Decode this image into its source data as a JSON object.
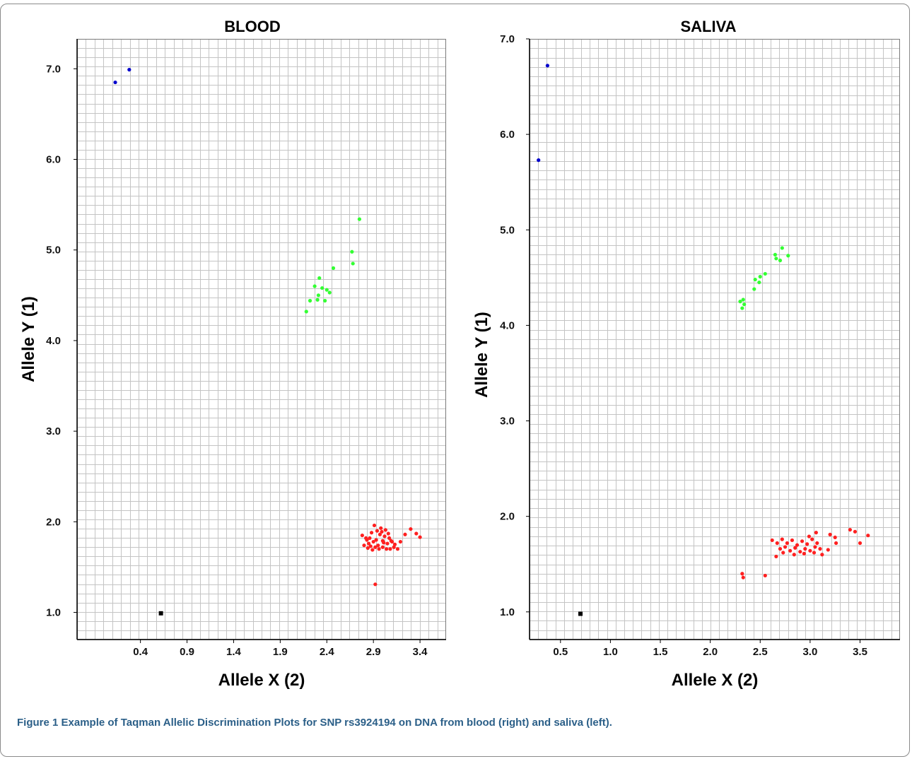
{
  "figure": {
    "label": "Figure 1",
    "caption": "Example of Taqman Allelic Discrimination Plots for SNP rs3924194 on DNA from blood (right) and saliva (left)."
  },
  "chart_data": [
    {
      "type": "scatter",
      "title": "BLOOD",
      "xlabel": "Allele X (2)",
      "ylabel": "Allele Y (1)",
      "xlim": [
        -0.28,
        3.68
      ],
      "ylim": [
        0.7,
        7.33
      ],
      "xticks": [
        "0.4",
        "0.9",
        "1.4",
        "1.9",
        "2.4",
        "2.9",
        "3.4"
      ],
      "xtick_values": [
        0.4,
        0.9,
        1.4,
        1.9,
        2.4,
        2.9,
        3.4
      ],
      "yticks": [
        "1.0",
        "2.0",
        "3.0",
        "4.0",
        "5.0",
        "6.0",
        "7.0"
      ],
      "yticks_values": [
        1.0,
        2.0,
        3.0,
        4.0,
        5.0,
        6.0,
        7.0
      ],
      "grid": true,
      "series": [
        {
          "color": "#0000cc",
          "points": [
            [
              0.13,
              6.85
            ],
            [
              0.28,
              6.99
            ]
          ]
        },
        {
          "color": "#33ff33",
          "points": [
            [
              2.75,
              5.34
            ],
            [
              2.67,
              4.98
            ],
            [
              2.68,
              4.85
            ],
            [
              2.47,
              4.8
            ],
            [
              2.32,
              4.69
            ],
            [
              2.27,
              4.6
            ],
            [
              2.35,
              4.58
            ],
            [
              2.4,
              4.56
            ],
            [
              2.43,
              4.53
            ],
            [
              2.31,
              4.5
            ],
            [
              2.22,
              4.44
            ],
            [
              2.3,
              4.45
            ],
            [
              2.38,
              4.44
            ],
            [
              2.18,
              4.32
            ]
          ]
        },
        {
          "color": "#ff2020",
          "points": [
            [
              2.91,
              1.96
            ],
            [
              2.98,
              1.93
            ],
            [
              2.78,
              1.85
            ],
            [
              2.82,
              1.82
            ],
            [
              2.85,
              1.76
            ],
            [
              2.88,
              1.88
            ],
            [
              2.9,
              1.78
            ],
            [
              2.93,
              1.8
            ],
            [
              2.95,
              1.74
            ],
            [
              2.97,
              1.86
            ],
            [
              3.0,
              1.79
            ],
            [
              3.02,
              1.84
            ],
            [
              3.05,
              1.76
            ],
            [
              3.07,
              1.82
            ],
            [
              3.1,
              1.78
            ],
            [
              3.13,
              1.75
            ],
            [
              2.8,
              1.74
            ],
            [
              2.84,
              1.71
            ],
            [
              2.87,
              1.73
            ],
            [
              2.89,
              1.69
            ],
            [
              2.92,
              1.72
            ],
            [
              2.96,
              1.7
            ],
            [
              3.0,
              1.72
            ],
            [
              3.04,
              1.7
            ],
            [
              3.08,
              1.7
            ],
            [
              3.12,
              1.72
            ],
            [
              3.16,
              1.7
            ],
            [
              2.99,
              1.89
            ],
            [
              3.03,
              1.91
            ],
            [
              3.06,
              1.87
            ],
            [
              3.24,
              1.86
            ],
            [
              3.3,
              1.92
            ],
            [
              3.36,
              1.87
            ],
            [
              3.4,
              1.83
            ],
            [
              3.19,
              1.78
            ],
            [
              2.83,
              1.8
            ],
            [
              2.86,
              1.82
            ],
            [
              2.94,
              1.9
            ],
            [
              3.01,
              1.77
            ],
            [
              3.09,
              1.79
            ],
            [
              2.92,
              1.31
            ]
          ]
        },
        {
          "color": "#000000",
          "points": [
            [
              0.62,
              0.99
            ]
          ]
        }
      ]
    },
    {
      "type": "scatter",
      "title": "SALIVA",
      "xlabel": "Allele X (2)",
      "ylabel": "Allele Y (1)",
      "xlim": [
        0.19,
        3.9
      ],
      "ylim": [
        0.71,
        7.0
      ],
      "xticks": [
        "0.5",
        "1.0",
        "1.5",
        "2.0",
        "2.5",
        "3.0",
        "3.5"
      ],
      "xtick_values": [
        0.5,
        1.0,
        1.5,
        2.0,
        2.5,
        3.0,
        3.5
      ],
      "yticks": [
        "1.0",
        "2.0",
        "3.0",
        "4.0",
        "5.0",
        "6.0",
        "7.0"
      ],
      "yticks_values": [
        1.0,
        2.0,
        3.0,
        4.0,
        5.0,
        6.0,
        7.0
      ],
      "grid": true,
      "series": [
        {
          "color": "#0000cc",
          "points": [
            [
              0.37,
              6.72
            ],
            [
              0.28,
              5.73
            ]
          ]
        },
        {
          "color": "#33ff33",
          "points": [
            [
              2.72,
              4.81
            ],
            [
              2.78,
              4.73
            ],
            [
              2.65,
              4.74
            ],
            [
              2.66,
              4.7
            ],
            [
              2.7,
              4.68
            ],
            [
              2.55,
              4.54
            ],
            [
              2.5,
              4.51
            ],
            [
              2.45,
              4.48
            ],
            [
              2.49,
              4.45
            ],
            [
              2.44,
              4.38
            ],
            [
              2.33,
              4.27
            ],
            [
              2.3,
              4.25
            ],
            [
              2.34,
              4.22
            ],
            [
              2.32,
              4.18
            ]
          ]
        },
        {
          "color": "#ff2020",
          "points": [
            [
              2.62,
              1.75
            ],
            [
              2.67,
              1.72
            ],
            [
              2.72,
              1.76
            ],
            [
              2.77,
              1.72
            ],
            [
              2.82,
              1.75
            ],
            [
              2.87,
              1.7
            ],
            [
              2.92,
              1.74
            ],
            [
              2.97,
              1.71
            ],
            [
              3.02,
              1.76
            ],
            [
              3.07,
              1.72
            ],
            [
              2.7,
              1.66
            ],
            [
              2.75,
              1.68
            ],
            [
              2.8,
              1.64
            ],
            [
              2.85,
              1.67
            ],
            [
              2.9,
              1.63
            ],
            [
              2.95,
              1.66
            ],
            [
              3.0,
              1.64
            ],
            [
              3.05,
              1.68
            ],
            [
              3.1,
              1.66
            ],
            [
              2.66,
              1.58
            ],
            [
              2.73,
              1.62
            ],
            [
              2.84,
              1.6
            ],
            [
              2.94,
              1.61
            ],
            [
              3.04,
              1.62
            ],
            [
              3.12,
              1.6
            ],
            [
              3.18,
              1.65
            ],
            [
              3.2,
              1.81
            ],
            [
              3.25,
              1.78
            ],
            [
              3.26,
              1.72
            ],
            [
              3.4,
              1.86
            ],
            [
              3.45,
              1.84
            ],
            [
              3.5,
              1.72
            ],
            [
              3.58,
              1.8
            ],
            [
              2.99,
              1.79
            ],
            [
              3.06,
              1.83
            ],
            [
              2.32,
              1.4
            ],
            [
              2.33,
              1.36
            ],
            [
              2.55,
              1.38
            ]
          ]
        },
        {
          "color": "#000000",
          "points": [
            [
              0.7,
              0.98
            ]
          ]
        }
      ]
    }
  ]
}
